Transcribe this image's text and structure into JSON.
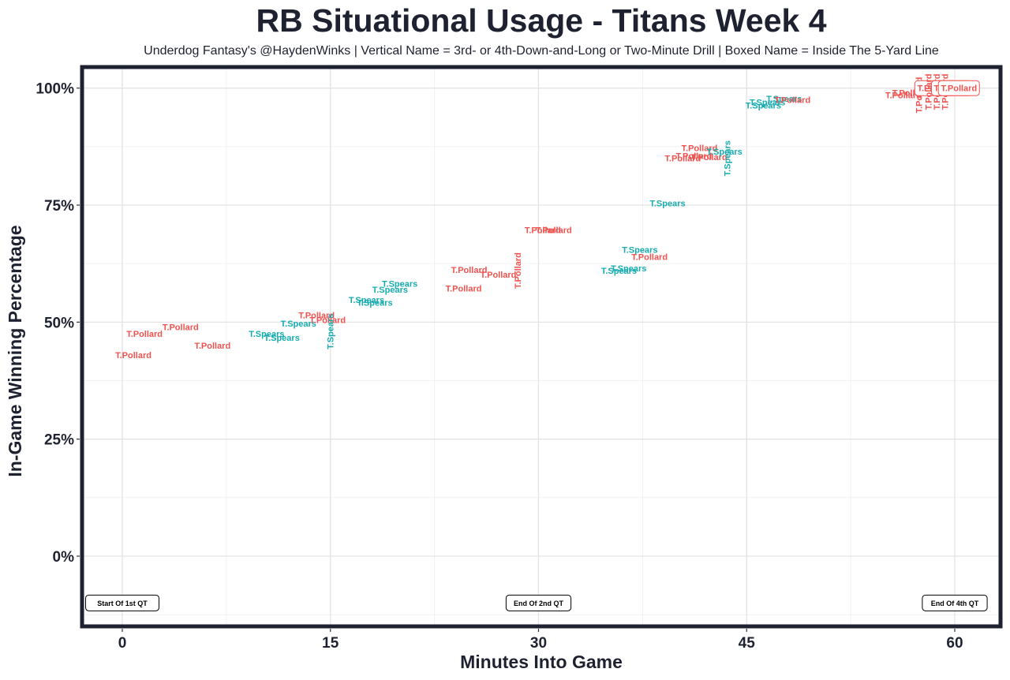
{
  "chart_data": {
    "type": "scatter",
    "title": "RB Situational Usage - Titans Week 4",
    "subtitle": "Underdog Fantasy's @HaydenWinks | Vertical Name = 3rd- or 4th-Down-and-Long or Two-Minute Drill | Boxed Name = Inside The 5-Yard Line",
    "xlabel": "Minutes Into Game",
    "ylabel": "In-Game Winning Percentage",
    "xlim": [
      -2.9,
      63.3
    ],
    "ylim": [
      -0.15,
      1.045
    ],
    "x_ticks": [
      {
        "value": 0,
        "label": "0"
      },
      {
        "value": 15,
        "label": "15"
      },
      {
        "value": 30,
        "label": "30"
      },
      {
        "value": 45,
        "label": "45"
      },
      {
        "value": 60,
        "label": "60"
      }
    ],
    "y_ticks": [
      {
        "value": 0,
        "label": "0%"
      },
      {
        "value": 0.25,
        "label": "25%"
      },
      {
        "value": 0.5,
        "label": "50%"
      },
      {
        "value": 0.75,
        "label": "75%"
      },
      {
        "value": 1.0,
        "label": "100%"
      }
    ],
    "grid": true,
    "legend": "none",
    "colors": {
      "T.Pollard": "#ef5350",
      "T.Spears": "#17abb0"
    },
    "points": [
      {
        "x": 0.8,
        "y": 0.43,
        "label": "T.Pollard"
      },
      {
        "x": 1.6,
        "y": 0.475,
        "label": "T.Pollard"
      },
      {
        "x": 4.2,
        "y": 0.49,
        "label": "T.Pollard"
      },
      {
        "x": 6.5,
        "y": 0.45,
        "label": "T.Pollard"
      },
      {
        "x": 10.4,
        "y": 0.475,
        "label": "T.Spears"
      },
      {
        "x": 11.5,
        "y": 0.467,
        "label": "T.Spears"
      },
      {
        "x": 12.7,
        "y": 0.497,
        "label": "T.Spears"
      },
      {
        "x": 14.0,
        "y": 0.515,
        "label": "T.Pollard"
      },
      {
        "x": 14.8,
        "y": 0.505,
        "label": "T.Pollard"
      },
      {
        "x": 15.0,
        "y": 0.48,
        "label": "T.Spears",
        "vertical": true
      },
      {
        "x": 17.6,
        "y": 0.548,
        "label": "T.Spears"
      },
      {
        "x": 18.2,
        "y": 0.542,
        "label": "T.Spears"
      },
      {
        "x": 19.3,
        "y": 0.57,
        "label": "T.Spears"
      },
      {
        "x": 20.0,
        "y": 0.582,
        "label": "T.Spears"
      },
      {
        "x": 24.6,
        "y": 0.572,
        "label": "T.Pollard"
      },
      {
        "x": 25.0,
        "y": 0.612,
        "label": "T.Pollard"
      },
      {
        "x": 27.1,
        "y": 0.602,
        "label": "T.Pollard"
      },
      {
        "x": 28.5,
        "y": 0.61,
        "label": "T.Pollard",
        "vertical": true
      },
      {
        "x": 30.3,
        "y": 0.697,
        "label": "T.Pollard"
      },
      {
        "x": 31.1,
        "y": 0.697,
        "label": "T.Pollard"
      },
      {
        "x": 35.8,
        "y": 0.61,
        "label": "T.Spears"
      },
      {
        "x": 36.5,
        "y": 0.615,
        "label": "T.Spears"
      },
      {
        "x": 37.3,
        "y": 0.655,
        "label": "T.Spears"
      },
      {
        "x": 38.0,
        "y": 0.64,
        "label": "T.Pollard"
      },
      {
        "x": 39.3,
        "y": 0.754,
        "label": "T.Spears"
      },
      {
        "x": 40.4,
        "y": 0.85,
        "label": "T.Pollard"
      },
      {
        "x": 41.2,
        "y": 0.855,
        "label": "T.Pollard"
      },
      {
        "x": 41.6,
        "y": 0.872,
        "label": "T.Pollard"
      },
      {
        "x": 42.3,
        "y": 0.853,
        "label": "T.Pollard"
      },
      {
        "x": 43.4,
        "y": 0.865,
        "label": "T.Spears"
      },
      {
        "x": 43.6,
        "y": 0.85,
        "label": "T.Spears",
        "vertical": true
      },
      {
        "x": 46.2,
        "y": 0.963,
        "label": "T.Spears"
      },
      {
        "x": 46.5,
        "y": 0.97,
        "label": "T.Spears"
      },
      {
        "x": 47.7,
        "y": 0.978,
        "label": "T.Spears"
      },
      {
        "x": 48.3,
        "y": 0.975,
        "label": "T.Pollard"
      },
      {
        "x": 56.3,
        "y": 0.985,
        "label": "T.Pollard"
      },
      {
        "x": 56.8,
        "y": 0.99,
        "label": "T.Pollard"
      },
      {
        "x": 57.4,
        "y": 0.985,
        "label": "T.Pollard",
        "vertical": true
      },
      {
        "x": 58.6,
        "y": 1.0,
        "label": "T.Pollard",
        "boxed": true
      },
      {
        "x": 58.1,
        "y": 0.992,
        "label": "T.Pollard",
        "vertical": true
      },
      {
        "x": 58.7,
        "y": 0.992,
        "label": "T.Pollard",
        "vertical": true
      },
      {
        "x": 59.3,
        "y": 0.992,
        "label": "T.Pollard",
        "vertical": true
      },
      {
        "x": 59.8,
        "y": 1.0,
        "label": "T.Pollard",
        "boxed": true
      },
      {
        "x": 60.3,
        "y": 1.0,
        "label": "T.Pollard",
        "boxed": true
      }
    ],
    "annotations": [
      {
        "x": 0,
        "y": -0.1,
        "text": "Start Of 1st QT"
      },
      {
        "x": 30,
        "y": -0.1,
        "text": "End Of 2nd QT"
      },
      {
        "x": 60,
        "y": -0.1,
        "text": "End Of 4th QT"
      }
    ]
  }
}
